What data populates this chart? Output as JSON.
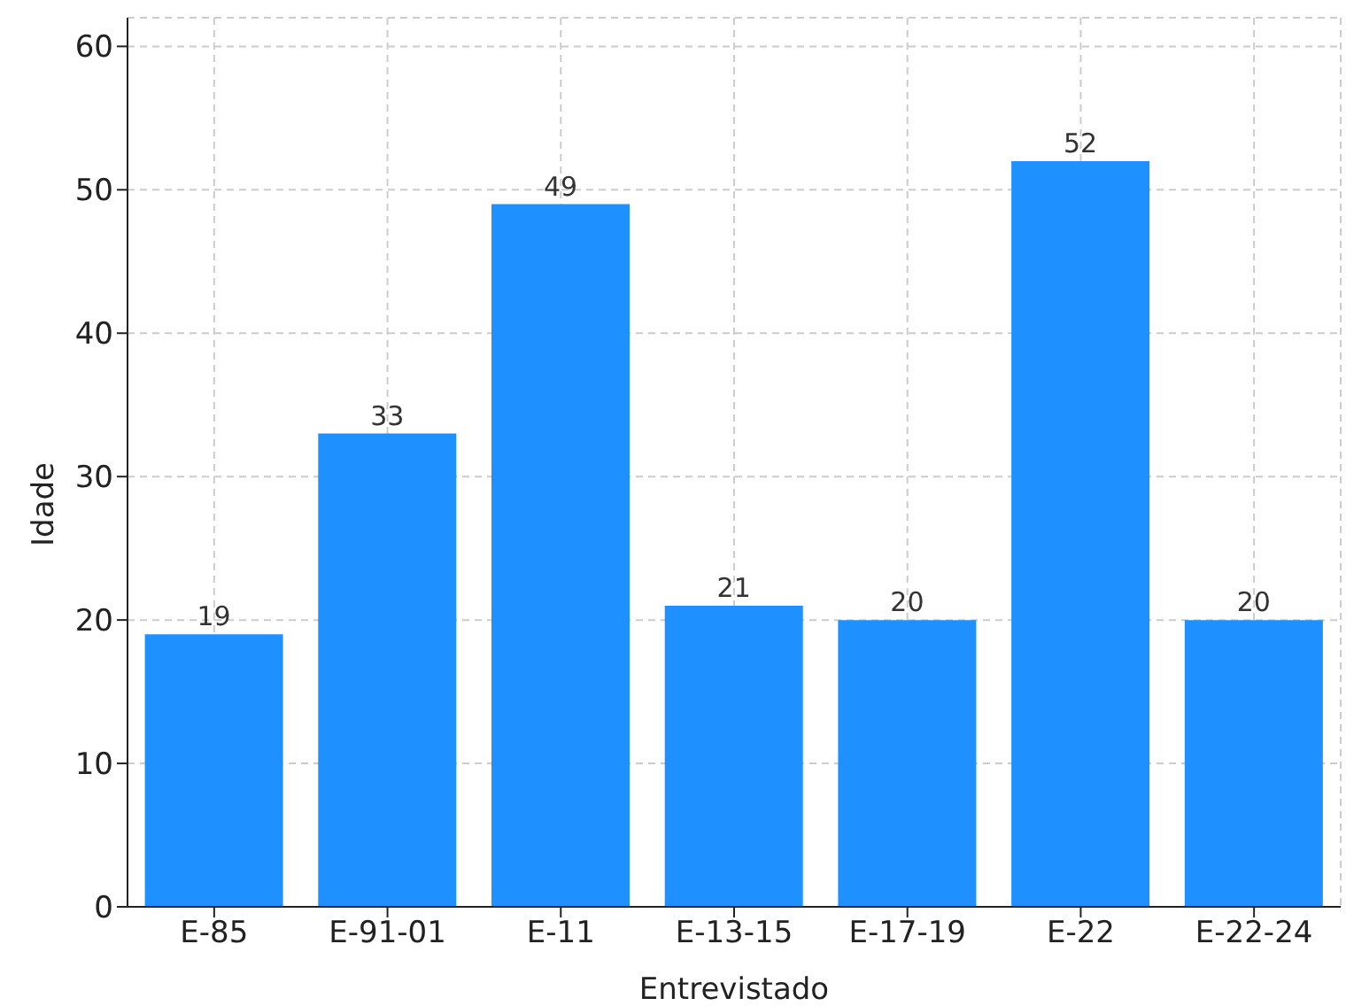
{
  "chart_data": {
    "type": "bar",
    "xlabel": "Entrevistado",
    "ylabel": "Idade",
    "categories": [
      "E-85",
      "E-91-01",
      "E-11",
      "E-13-15",
      "E-17-19",
      "E-22",
      "E-22-24"
    ],
    "values": [
      19,
      33,
      49,
      21,
      20,
      52,
      20
    ],
    "color": "#1e90ff",
    "ylim": [
      0,
      62
    ],
    "yticks": [
      0,
      10,
      20,
      30,
      40,
      50,
      60
    ],
    "grid": true,
    "data_labels": true
  }
}
